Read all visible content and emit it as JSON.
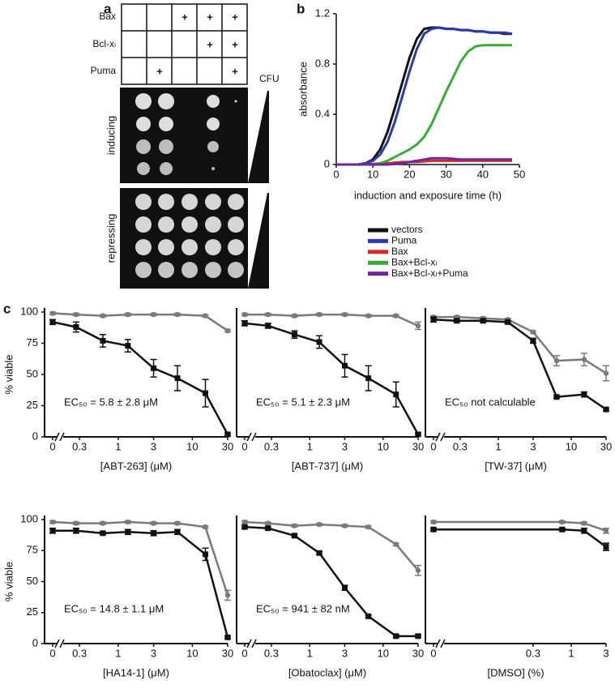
{
  "panel_labels": [
    "a",
    "b",
    "c"
  ],
  "panel_a": {
    "table": {
      "rows": [
        {
          "label": "Bax",
          "cells": [
            null,
            null,
            "+",
            "+",
            "+"
          ]
        },
        {
          "label": "Bcl-xₗ",
          "cells": [
            null,
            null,
            null,
            "+",
            "+"
          ]
        },
        {
          "label": "Puma",
          "cells": [
            null,
            "+",
            null,
            null,
            "+"
          ]
        }
      ]
    },
    "cfu_label": "CFU",
    "conditions": [
      "inducing",
      "repressing"
    ]
  },
  "chart_data": [
    {
      "type": "line",
      "xlabel": "induction and exposure time (h)",
      "ylabel": "absorbance",
      "x": [
        0,
        2,
        4,
        6,
        8,
        10,
        12,
        14,
        16,
        18,
        20,
        22,
        24,
        26,
        28,
        30,
        32,
        34,
        36,
        38,
        40,
        42,
        44,
        46,
        48
      ],
      "series": [
        {
          "name": "vectors",
          "color": "#111111",
          "values": [
            0,
            0,
            0,
            0,
            0.01,
            0.04,
            0.12,
            0.26,
            0.45,
            0.65,
            0.85,
            1.0,
            1.08,
            1.09,
            1.09,
            1.08,
            1.08,
            1.07,
            1.07,
            1.06,
            1.06,
            1.05,
            1.05,
            1.04,
            1.04
          ]
        },
        {
          "name": "Puma",
          "color": "#2a3aa8",
          "values": [
            0,
            0,
            0,
            0,
            0.01,
            0.03,
            0.08,
            0.18,
            0.34,
            0.54,
            0.74,
            0.92,
            1.04,
            1.08,
            1.09,
            1.08,
            1.08,
            1.07,
            1.07,
            1.06,
            1.06,
            1.05,
            1.05,
            1.05,
            1.04
          ]
        },
        {
          "name": "Bax",
          "color": "#d42a2a",
          "values": [
            0,
            0,
            0,
            0,
            0,
            0.005,
            0.01,
            0.01,
            0.015,
            0.02,
            0.02,
            0.02,
            0.025,
            0.03,
            0.03,
            0.03,
            0.03,
            0.03,
            0.03,
            0.03,
            0.03,
            0.03,
            0.03,
            0.03,
            0.03
          ]
        },
        {
          "name": "Bax+Bcl-xₗ",
          "color": "#3aaa3a",
          "values": [
            0,
            0,
            0,
            0,
            0,
            0,
            0.01,
            0.03,
            0.06,
            0.09,
            0.12,
            0.16,
            0.22,
            0.32,
            0.45,
            0.58,
            0.7,
            0.82,
            0.9,
            0.94,
            0.95,
            0.95,
            0.95,
            0.95,
            0.95
          ]
        },
        {
          "name": "Bax+Bcl-xₗ+Puma",
          "color": "#6a2a9a",
          "values": [
            0,
            0,
            0,
            0,
            0,
            0,
            0,
            0,
            0.005,
            0.01,
            0.02,
            0.03,
            0.04,
            0.05,
            0.05,
            0.05,
            0.045,
            0.04,
            0.04,
            0.04,
            0.04,
            0.04,
            0.04,
            0.04,
            0.04
          ]
        }
      ],
      "xlim": [
        0,
        50
      ],
      "xticks": [
        0,
        10,
        20,
        30,
        40,
        50
      ],
      "ylim": [
        0,
        1.2
      ],
      "yticks": [
        0,
        0.4,
        0.8,
        1.2
      ],
      "legend": "below"
    },
    {
      "type": "line",
      "xscale": "log",
      "axis_break": true,
      "xlabel": "[ABT-263] (μM)",
      "ylabel": "% viable",
      "annotation": "EC₅₀ = 5.8 ± 2.8 μM",
      "x": [
        0,
        0.27,
        0.62,
        1.35,
        3,
        6.3,
        15,
        30
      ],
      "series": [
        {
          "color": "#7a7a7a",
          "values": [
            99,
            98,
            97,
            98,
            98,
            98,
            97,
            85
          ],
          "errors": [
            1,
            1,
            1,
            1,
            1,
            1,
            1,
            1
          ]
        },
        {
          "color": "#111111",
          "values": [
            92,
            88,
            77,
            73,
            55,
            47,
            35,
            2
          ],
          "errors": [
            2,
            4,
            5,
            5,
            7,
            10,
            11,
            1
          ]
        }
      ],
      "xlim": [
        0.2,
        30
      ],
      "xticks": [
        0,
        0.3,
        1,
        3,
        10,
        30
      ],
      "ylim": [
        0,
        100
      ],
      "yticks": [
        0,
        25,
        50,
        75,
        100
      ]
    },
    {
      "type": "line",
      "xscale": "log",
      "axis_break": true,
      "xlabel": "[ABT-737] (μM)",
      "annotation": "EC₅₀ = 5.1 ± 2.3  μM",
      "x": [
        0,
        0.27,
        0.62,
        1.35,
        3,
        6.3,
        15,
        30
      ],
      "series": [
        {
          "color": "#7a7a7a",
          "values": [
            98,
            98,
            97,
            98,
            98,
            97,
            97,
            89
          ],
          "errors": [
            1,
            1,
            1,
            1,
            1,
            1,
            1,
            3
          ]
        },
        {
          "color": "#111111",
          "values": [
            91,
            89,
            82,
            76,
            57,
            47,
            34,
            2
          ],
          "errors": [
            2,
            2,
            3,
            5,
            9,
            10,
            10,
            1
          ]
        }
      ],
      "xlim": [
        0.2,
        30
      ],
      "xticks": [
        0,
        0.3,
        1,
        3,
        10,
        30
      ],
      "ylim": [
        0,
        100
      ]
    },
    {
      "type": "line",
      "xscale": "log",
      "axis_break": true,
      "xlabel": "[TW-37] (μM)",
      "annotation": "EC₅₀ not calculable",
      "x": [
        0,
        0.27,
        0.62,
        1.35,
        3,
        6.3,
        15,
        30
      ],
      "series": [
        {
          "color": "#7a7a7a",
          "values": [
            96,
            96,
            95,
            94,
            84,
            61,
            62,
            51
          ],
          "errors": [
            1,
            1,
            1,
            1,
            1,
            4,
            5,
            6
          ]
        },
        {
          "color": "#111111",
          "values": [
            94,
            93,
            93,
            92,
            77,
            32,
            34,
            22
          ],
          "errors": [
            2,
            1,
            1,
            1,
            2,
            1,
            2,
            1
          ]
        }
      ],
      "xlim": [
        0.2,
        30
      ],
      "xticks": [
        0,
        0.3,
        1,
        3,
        10,
        30
      ],
      "ylim": [
        0,
        100
      ]
    },
    {
      "type": "line",
      "xscale": "log",
      "axis_break": true,
      "xlabel": "[HA14-1] (μM)",
      "ylabel": "% viable",
      "annotation": "EC₅₀ = 14.8 ± 1.1 μM",
      "x": [
        0,
        0.27,
        0.62,
        1.35,
        3,
        6.3,
        15,
        30
      ],
      "series": [
        {
          "color": "#7a7a7a",
          "values": [
            98,
            97,
            97,
            98,
            97,
            97,
            94,
            39
          ],
          "errors": [
            1,
            1,
            1,
            1,
            1,
            1,
            1,
            4
          ]
        },
        {
          "color": "#111111",
          "values": [
            91,
            91,
            89,
            90,
            89,
            90,
            72,
            5
          ],
          "errors": [
            2,
            2,
            1,
            2,
            2,
            2,
            5,
            1
          ]
        }
      ],
      "xlim": [
        0.2,
        30
      ],
      "xticks": [
        0,
        0.3,
        1,
        3,
        10,
        30
      ],
      "ylim": [
        0,
        100
      ],
      "yticks": [
        0,
        25,
        50,
        75,
        100
      ]
    },
    {
      "type": "line",
      "xscale": "log",
      "axis_break": true,
      "xlabel": "[Obatoclax] (μM)",
      "annotation": "EC₅₀ = 941 ± 82 nM",
      "x": [
        0,
        0.27,
        0.62,
        1.35,
        3,
        6.3,
        15,
        30
      ],
      "series": [
        {
          "color": "#7a7a7a",
          "values": [
            98,
            97,
            95,
            96,
            95,
            94,
            80,
            59
          ],
          "errors": [
            1,
            1,
            1,
            1,
            1,
            1,
            1,
            4
          ]
        },
        {
          "color": "#111111",
          "values": [
            94,
            93,
            87,
            73,
            45,
            22,
            6,
            6
          ],
          "errors": [
            1,
            1,
            1,
            1,
            2,
            1,
            1,
            1
          ]
        }
      ],
      "xlim": [
        0.2,
        30
      ],
      "xticks": [
        0,
        0.3,
        1,
        3,
        10,
        30
      ],
      "ylim": [
        0,
        100
      ]
    },
    {
      "type": "line",
      "xscale": "log",
      "axis_break": true,
      "xlabel": "[DMSO] (%)",
      "x": [
        0,
        0.75,
        1.5,
        3
      ],
      "series": [
        {
          "color": "#7a7a7a",
          "values": [
            98,
            98,
            97,
            91
          ],
          "errors": [
            1,
            1,
            1,
            2
          ]
        },
        {
          "color": "#111111",
          "values": [
            92,
            92,
            91,
            78
          ],
          "errors": [
            1,
            1,
            2,
            3
          ]
        }
      ],
      "xlim": [
        0.02,
        3
      ],
      "xticks": [
        0,
        0.3,
        1,
        3
      ],
      "ylim": [
        0,
        100
      ]
    }
  ]
}
